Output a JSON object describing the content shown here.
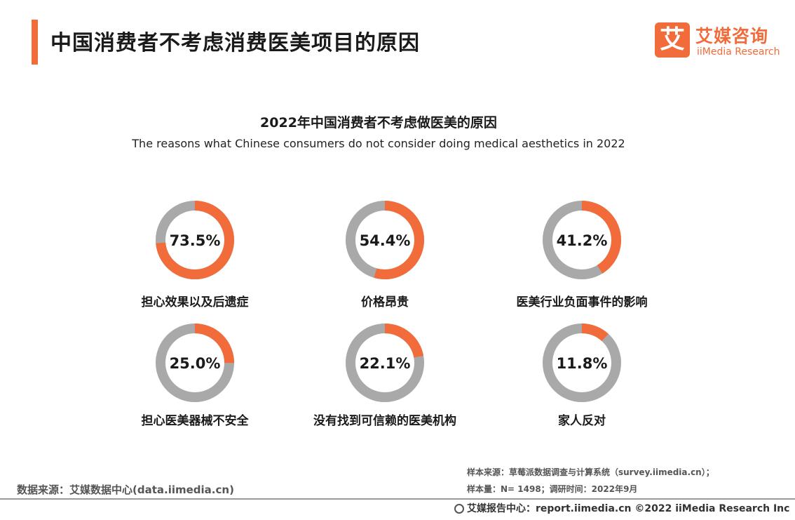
{
  "header": {
    "title": "中国消费者不考虑消费医美项目的原因",
    "logo_mark": "艾",
    "logo_cn": "艾媒咨询",
    "logo_en": "iiMedia Research"
  },
  "colors": {
    "accent": "#f26b3a",
    "track": "#a9a9a9"
  },
  "chart_data": {
    "type": "pie",
    "title": "2022年中国消费者不考虑做医美的原因",
    "subtitle": "The reasons what Chinese consumers do not consider doing medical aesthetics in 2022",
    "items": [
      {
        "label": "担心效果以及后遗症",
        "value": 73.5,
        "pct_text": "73.5%"
      },
      {
        "label": "价格昂贵",
        "value": 54.4,
        "pct_text": "54.4%"
      },
      {
        "label": "医美行业负面事件的影响",
        "value": 41.2,
        "pct_text": "41.2%"
      },
      {
        "label": "担心医美器械不安全",
        "value": 25.0,
        "pct_text": "25.0%"
      },
      {
        "label": "没有找到可信赖的医美机构",
        "value": 22.1,
        "pct_text": "22.1%"
      },
      {
        "label": "家人反对",
        "value": 11.8,
        "pct_text": "11.8%"
      }
    ]
  },
  "footer": {
    "source": "数据来源：艾媒数据中心(data.iimedia.cn)",
    "sample_source": "样本来源：草莓派数据调查与计算系统（survey.iimedia.cn）；",
    "sample_size": "样本量：N= 1498；调研时间：2022年9月",
    "report": "艾媒报告中心：report.iimedia.cn   ©2022  iiMedia Research  Inc"
  }
}
